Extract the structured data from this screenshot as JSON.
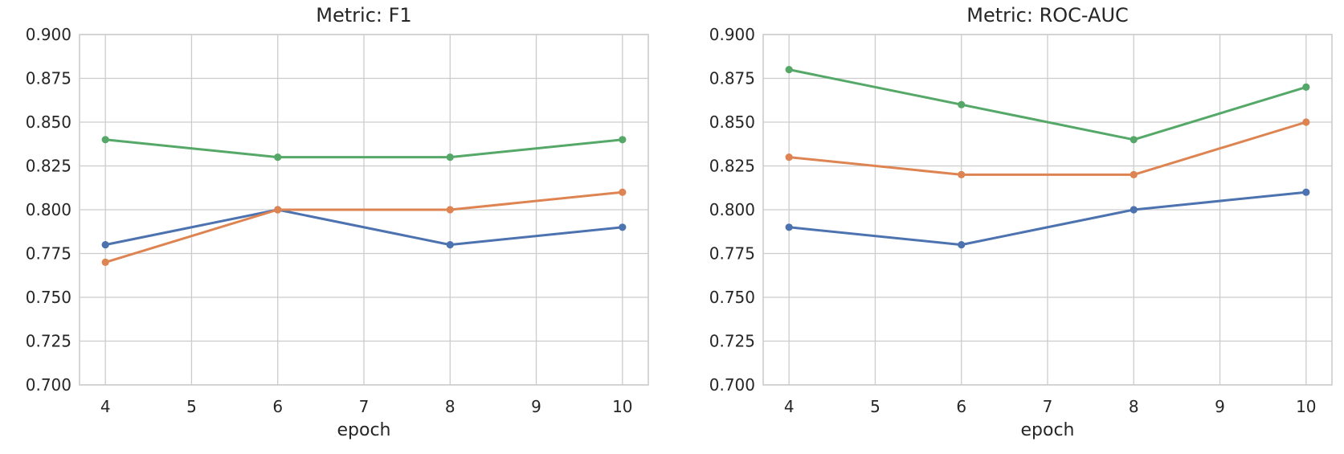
{
  "figure": {
    "background": "#ffffff",
    "grid_color": "#cccccc",
    "spine_color": "#cccccc",
    "text_color": "#262626"
  },
  "chart_data": [
    {
      "type": "line",
      "title": "Metric: F1",
      "xlabel": "epoch",
      "ylabel": "",
      "grid": true,
      "legend": "none",
      "x": [
        4,
        6,
        8,
        10
      ],
      "xticks": [
        4,
        5,
        6,
        7,
        8,
        9,
        10
      ],
      "xtick_labels": [
        "4",
        "5",
        "6",
        "7",
        "8",
        "9",
        "10"
      ],
      "yticks": [
        0.7,
        0.725,
        0.75,
        0.775,
        0.8,
        0.825,
        0.85,
        0.875,
        0.9
      ],
      "ytick_labels": [
        "0.700",
        "0.725",
        "0.750",
        "0.775",
        "0.800",
        "0.825",
        "0.850",
        "0.875",
        "0.900"
      ],
      "xlim": [
        3.7,
        10.3
      ],
      "ylim": [
        0.7,
        0.9
      ],
      "series": [
        {
          "name": "blue",
          "color": "#4C72B0",
          "values": [
            0.78,
            0.8,
            0.78,
            0.79
          ]
        },
        {
          "name": "orange",
          "color": "#DD8452",
          "values": [
            0.77,
            0.8,
            0.8,
            0.81
          ]
        },
        {
          "name": "green",
          "color": "#55A868",
          "values": [
            0.84,
            0.83,
            0.83,
            0.84
          ]
        }
      ]
    },
    {
      "type": "line",
      "title": "Metric: ROC-AUC",
      "xlabel": "epoch",
      "ylabel": "",
      "grid": true,
      "legend": "none",
      "x": [
        4,
        6,
        8,
        10
      ],
      "xticks": [
        4,
        5,
        6,
        7,
        8,
        9,
        10
      ],
      "xtick_labels": [
        "4",
        "5",
        "6",
        "7",
        "8",
        "9",
        "10"
      ],
      "yticks": [
        0.7,
        0.725,
        0.75,
        0.775,
        0.8,
        0.825,
        0.85,
        0.875,
        0.9
      ],
      "ytick_labels": [
        "0.700",
        "0.725",
        "0.750",
        "0.775",
        "0.800",
        "0.825",
        "0.850",
        "0.875",
        "0.900"
      ],
      "xlim": [
        3.7,
        10.3
      ],
      "ylim": [
        0.7,
        0.9
      ],
      "series": [
        {
          "name": "blue",
          "color": "#4C72B0",
          "values": [
            0.79,
            0.78,
            0.8,
            0.81
          ]
        },
        {
          "name": "orange",
          "color": "#DD8452",
          "values": [
            0.83,
            0.82,
            0.82,
            0.85
          ]
        },
        {
          "name": "green",
          "color": "#55A868",
          "values": [
            0.88,
            0.86,
            0.84,
            0.87
          ]
        }
      ]
    }
  ]
}
